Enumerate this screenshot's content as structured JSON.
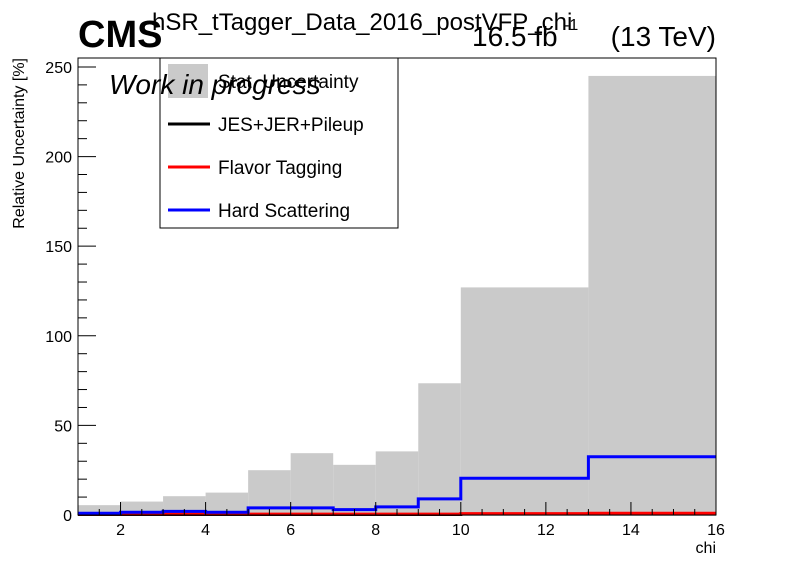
{
  "header": {
    "experiment": "CMS",
    "status": "Work in progress",
    "hist_title": "hSR_tTagger_Data_2016_postVFP_chi",
    "lumi_value": "16.5 fb",
    "lumi_exponent": "-1",
    "energy": "(13 TeV)"
  },
  "chart_data": {
    "type": "histogram",
    "xlabel": "chi",
    "ylabel": "Relative Uncertainty [%]",
    "xlim": [
      1,
      16
    ],
    "ylim": [
      0,
      255
    ],
    "x_ticks": [
      2,
      4,
      6,
      8,
      10,
      12,
      14,
      16
    ],
    "y_ticks": [
      0,
      50,
      100,
      150,
      200,
      250
    ],
    "bin_edges": [
      1,
      2,
      3,
      4,
      5,
      6,
      7,
      8,
      9,
      10,
      13,
      16
    ],
    "legend_position": "top-left",
    "series": [
      {
        "name": "Stat. Uncertainty",
        "style": "fill",
        "color": "#cacaca",
        "values": [
          5.5,
          7.5,
          10.5,
          12.5,
          25,
          34.5,
          28,
          35.5,
          73.5,
          127,
          245
        ]
      },
      {
        "name": "JES+JER+Pileup",
        "style": "line",
        "color": "#000000",
        "values": [
          0.3,
          0.3,
          0.3,
          0.3,
          0.3,
          0.3,
          0.3,
          0.3,
          0.3,
          0.5,
          0.5
        ]
      },
      {
        "name": "Flavor Tagging",
        "style": "line",
        "color": "#ff0000",
        "values": [
          0.5,
          0.5,
          0.5,
          0.5,
          0.5,
          0.5,
          0.5,
          0.5,
          0.5,
          0.8,
          1.0
        ]
      },
      {
        "name": "Hard Scattering",
        "style": "line",
        "color": "#0000ff",
        "values": [
          1.0,
          1.5,
          2.0,
          1.5,
          4.0,
          4.0,
          3.0,
          4.5,
          9.0,
          20.5,
          32.5
        ]
      }
    ]
  }
}
